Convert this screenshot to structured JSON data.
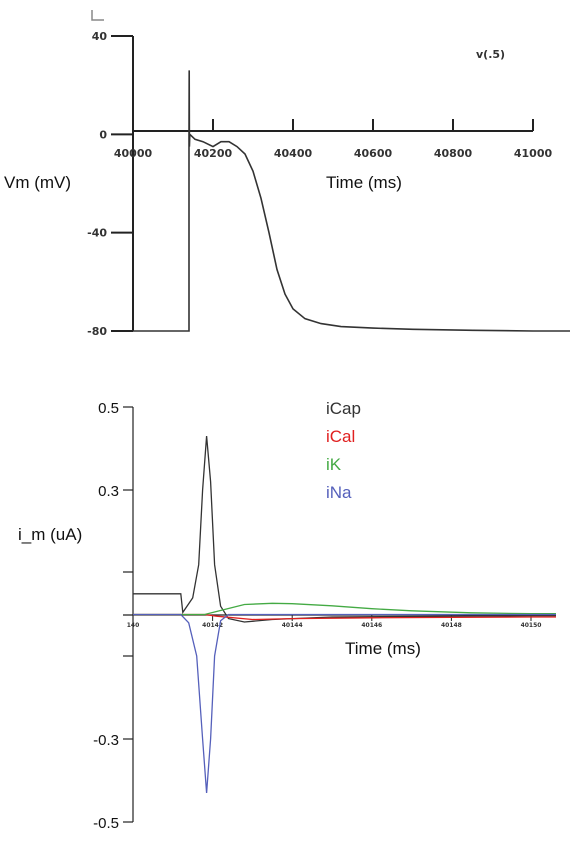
{
  "chart_data": [
    {
      "type": "line",
      "ylabel": "Vm (mV)",
      "xlabel": "Time (ms)",
      "legend": [
        "v(.5)"
      ],
      "legend_position": "top-right",
      "xlim": [
        40000,
        41000
      ],
      "ylim": [
        -80,
        40
      ],
      "x_ticks": [
        "40000",
        "40200",
        "40400",
        "40600",
        "40800",
        "41000"
      ],
      "y_ticks": [
        "40",
        "0",
        "-40",
        "-80"
      ],
      "series": [
        {
          "name": "v(.5)",
          "color": "#333333",
          "points": [
            [
              40000,
              -80
            ],
            [
              40140,
              -80
            ],
            [
              40140,
              0
            ],
            [
              40140.5,
              26
            ],
            [
              40141,
              -5
            ],
            [
              40142,
              0
            ],
            [
              40155,
              -2
            ],
            [
              40175,
              -3
            ],
            [
              40200,
              -5
            ],
            [
              40220,
              -3
            ],
            [
              40240,
              -3
            ],
            [
              40260,
              -5
            ],
            [
              40280,
              -8
            ],
            [
              40300,
              -15
            ],
            [
              40320,
              -26
            ],
            [
              40340,
              -40
            ],
            [
              40360,
              -55
            ],
            [
              40380,
              -65
            ],
            [
              40400,
              -71
            ],
            [
              40430,
              -75
            ],
            [
              40470,
              -77
            ],
            [
              40520,
              -78.2
            ],
            [
              40600,
              -78.8
            ],
            [
              40700,
              -79.3
            ],
            [
              40850,
              -79.7
            ],
            [
              41000,
              -80
            ]
          ]
        }
      ]
    },
    {
      "type": "line",
      "ylabel": "i_m (uA)",
      "xlabel": "Time (ms)",
      "legend": [
        "iCap",
        "iCal",
        "iK",
        "iNa"
      ],
      "legend_position": "top-right",
      "xlim": [
        40140,
        40150
      ],
      "ylim": [
        -0.5,
        0.5
      ],
      "x_ticks": [
        "140",
        "40142",
        "40144",
        "40146",
        "40148",
        "40150"
      ],
      "y_ticks": [
        "0.5",
        "0.3",
        "-0.3",
        "-0.5"
      ],
      "series": [
        {
          "name": "iCap",
          "color": "#333333",
          "points": [
            [
              40140,
              0.05
            ],
            [
              40141.2,
              0.05
            ],
            [
              40141.25,
              0.005
            ],
            [
              40141.5,
              0.04
            ],
            [
              40141.65,
              0.12
            ],
            [
              40141.75,
              0.3
            ],
            [
              40141.85,
              0.43
            ],
            [
              40141.95,
              0.32
            ],
            [
              40142.05,
              0.12
            ],
            [
              40142.2,
              0.02
            ],
            [
              40142.4,
              -0.01
            ],
            [
              40142.8,
              -0.018
            ],
            [
              40143.5,
              -0.012
            ],
            [
              40145,
              -0.006
            ],
            [
              40150,
              -0.003
            ]
          ]
        },
        {
          "name": "iCal",
          "color": "#e02020",
          "points": [
            [
              40140,
              0
            ],
            [
              40141.8,
              0
            ],
            [
              40142.1,
              -0.004
            ],
            [
              40143,
              -0.012
            ],
            [
              40144,
              -0.01
            ],
            [
              40146,
              -0.008
            ],
            [
              40148,
              -0.007
            ],
            [
              40150,
              -0.006
            ]
          ]
        },
        {
          "name": "iK",
          "color": "#44aa44",
          "points": [
            [
              40140,
              0
            ],
            [
              40141.8,
              0
            ],
            [
              40142.3,
              0.012
            ],
            [
              40142.8,
              0.024
            ],
            [
              40143.5,
              0.027
            ],
            [
              40144,
              0.026
            ],
            [
              40145,
              0.021
            ],
            [
              40146,
              0.014
            ],
            [
              40147,
              0.009
            ],
            [
              40148.5,
              0.004
            ],
            [
              40150,
              0.002
            ]
          ]
        },
        {
          "name": "iNa",
          "color": "#5560bb",
          "points": [
            [
              40140,
              0
            ],
            [
              40141.2,
              0
            ],
            [
              40141.4,
              -0.02
            ],
            [
              40141.6,
              -0.1
            ],
            [
              40141.75,
              -0.3
            ],
            [
              40141.85,
              -0.43
            ],
            [
              40141.95,
              -0.3
            ],
            [
              40142.05,
              -0.1
            ],
            [
              40142.2,
              -0.015
            ],
            [
              40142.4,
              0
            ],
            [
              40150,
              0
            ]
          ]
        }
      ]
    }
  ]
}
